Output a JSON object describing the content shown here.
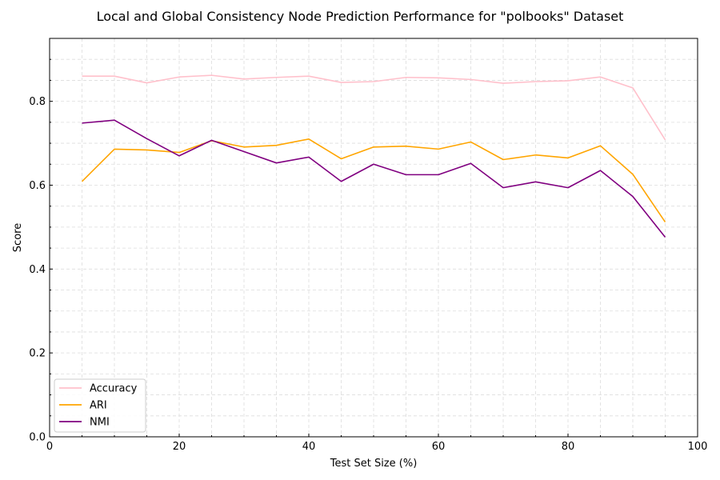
{
  "chart_data": {
    "type": "line",
    "title": "Local and Global Consistency Node Prediction Performance for \"polbooks\" Dataset",
    "xlabel": "Test Set Size (%)",
    "ylabel": "Score",
    "xlim": [
      0,
      100
    ],
    "ylim": [
      0,
      0.95
    ],
    "xticks": [
      0,
      20,
      40,
      60,
      80,
      100
    ],
    "yticks": [
      0.0,
      0.2,
      0.4,
      0.6,
      0.8
    ],
    "grid": true,
    "legend_position": "lower-left",
    "x": [
      5,
      10,
      15,
      20,
      25,
      30,
      35,
      40,
      45,
      50,
      55,
      60,
      65,
      70,
      75,
      80,
      85,
      90,
      95
    ],
    "series": [
      {
        "name": "Accuracy",
        "color": "#ffc0cb",
        "values": [
          0.86,
          0.86,
          0.844,
          0.858,
          0.862,
          0.853,
          0.857,
          0.86,
          0.845,
          0.847,
          0.857,
          0.856,
          0.852,
          0.843,
          0.847,
          0.849,
          0.858,
          0.832,
          0.708
        ]
      },
      {
        "name": "ARI",
        "color": "#ffa500",
        "values": [
          0.609,
          0.686,
          0.684,
          0.678,
          0.706,
          0.691,
          0.695,
          0.71,
          0.663,
          0.691,
          0.693,
          0.686,
          0.703,
          0.661,
          0.672,
          0.665,
          0.694,
          0.626,
          0.512
        ]
      },
      {
        "name": "NMI",
        "color": "#800080",
        "values": [
          0.748,
          0.755,
          0.711,
          0.67,
          0.707,
          0.68,
          0.653,
          0.667,
          0.609,
          0.65,
          0.625,
          0.625,
          0.652,
          0.594,
          0.608,
          0.594,
          0.635,
          0.573,
          0.476
        ]
      }
    ]
  }
}
